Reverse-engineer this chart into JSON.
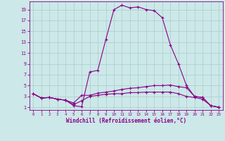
{
  "xlabel": "Windchill (Refroidissement éolien,°C)",
  "bg_color": "#cce8e8",
  "grid_color": "#aacccc",
  "line_color": "#880088",
  "xlim": [
    -0.5,
    23.5
  ],
  "ylim": [
    0.5,
    20.5
  ],
  "x_ticks": [
    0,
    1,
    2,
    3,
    4,
    5,
    6,
    7,
    8,
    9,
    10,
    11,
    12,
    13,
    14,
    15,
    16,
    17,
    18,
    19,
    20,
    21,
    22,
    23
  ],
  "y_ticks": [
    1,
    3,
    5,
    7,
    9,
    11,
    13,
    15,
    17,
    19
  ],
  "line1_x": [
    0,
    1,
    2,
    3,
    4,
    5,
    6,
    7,
    8,
    9,
    10,
    11,
    12,
    13,
    14,
    15,
    16,
    17,
    18,
    19,
    20,
    21,
    22,
    23
  ],
  "line1_y": [
    3.5,
    2.7,
    2.8,
    2.5,
    2.3,
    1.3,
    1.1,
    7.5,
    7.8,
    13.5,
    19.0,
    19.8,
    19.3,
    19.5,
    19.0,
    18.8,
    17.5,
    12.5,
    9.0,
    5.0,
    3.0,
    2.8,
    1.3,
    1.0
  ],
  "line2_x": [
    0,
    1,
    2,
    3,
    4,
    5,
    6,
    7,
    8,
    9,
    10,
    11,
    12,
    13,
    14,
    15,
    16,
    17,
    18,
    19,
    20,
    21,
    22,
    23
  ],
  "line2_y": [
    3.5,
    2.7,
    2.8,
    2.5,
    2.3,
    1.8,
    3.2,
    3.2,
    3.6,
    3.8,
    4.0,
    4.3,
    4.5,
    4.6,
    4.8,
    5.0,
    5.0,
    5.1,
    4.8,
    4.6,
    3.0,
    2.8,
    1.3,
    1.0
  ],
  "line3_x": [
    0,
    1,
    2,
    3,
    4,
    5,
    6,
    7,
    8,
    9,
    10,
    11,
    12,
    13,
    14,
    15,
    16,
    17,
    18,
    19,
    20,
    21,
    22,
    23
  ],
  "line3_y": [
    3.5,
    2.7,
    2.8,
    2.5,
    2.3,
    1.5,
    2.2,
    3.0,
    3.2,
    3.4,
    3.5,
    3.5,
    3.7,
    3.7,
    3.8,
    3.8,
    3.8,
    3.8,
    3.5,
    3.0,
    2.8,
    2.5,
    1.3,
    1.0
  ]
}
